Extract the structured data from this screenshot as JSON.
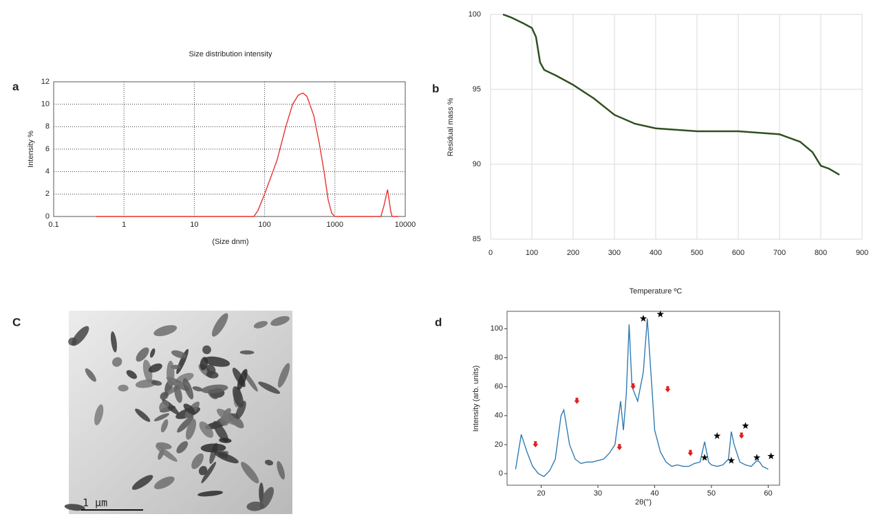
{
  "chart_data": [
    {
      "type": "line",
      "panel_label": "a",
      "title": "Size distribution intensity",
      "x_label": "(Size dnm)",
      "y_label": "Intensity %",
      "xscale": "log",
      "grid": "dotted",
      "color": "#e8312f",
      "x": [
        0.4,
        1,
        10,
        60,
        70,
        80,
        100,
        150,
        200,
        250,
        300,
        350,
        400,
        500,
        600,
        700,
        800,
        900,
        1000,
        4500,
        5000,
        5600,
        6200,
        6500,
        8000
      ],
      "values": [
        0,
        0,
        0,
        0,
        0,
        0.5,
        2,
        5,
        8,
        10,
        10.8,
        11,
        10.7,
        9,
        6.5,
        4,
        1.5,
        0.3,
        0,
        0,
        1,
        2.4,
        0.5,
        0,
        0
      ],
      "xlim": [
        0.1,
        10000
      ],
      "xticks": [
        0.1,
        1,
        10,
        100,
        1000,
        10000
      ],
      "ylim": [
        0,
        12
      ],
      "yticks": [
        0,
        2,
        4,
        6,
        8,
        10,
        12
      ]
    },
    {
      "type": "line",
      "panel_label": "b",
      "x_label": "Temperature ºC",
      "y_label": "Residual mass %",
      "grid": "solid",
      "color": "#2f4f1f",
      "x": [
        30,
        50,
        80,
        100,
        110,
        120,
        130,
        160,
        200,
        250,
        300,
        350,
        400,
        500,
        600,
        700,
        750,
        780,
        800,
        820,
        845
      ],
      "values": [
        100,
        99.8,
        99.4,
        99.1,
        98.5,
        96.8,
        96.3,
        95.9,
        95.3,
        94.4,
        93.3,
        92.7,
        92.4,
        92.2,
        92.2,
        92.0,
        91.5,
        90.8,
        89.9,
        89.7,
        89.3
      ],
      "xlim": [
        0,
        900
      ],
      "xticks": [
        0,
        100,
        200,
        300,
        400,
        500,
        600,
        700,
        800,
        900
      ],
      "ylim": [
        85,
        100
      ],
      "yticks": [
        85,
        90,
        95,
        100
      ]
    },
    {
      "type": "line",
      "panel_label": "d",
      "x_label": "2θ(°)",
      "y_label": "Intensity (arb. units)",
      "color": "#2e7bb4",
      "x": [
        15.5,
        16.5,
        17.5,
        18.5,
        19.5,
        20.5,
        21.5,
        22.5,
        23.5,
        24,
        25,
        26,
        27,
        28,
        29,
        30,
        31,
        32,
        33,
        34,
        34.5,
        35,
        35.5,
        36,
        37,
        38,
        38.7,
        39.5,
        40,
        41,
        42,
        43,
        44,
        45,
        46,
        47,
        48,
        48.8,
        49.5,
        50,
        51,
        52,
        53,
        53.5,
        54,
        55,
        56,
        57,
        58,
        58.5,
        59,
        60
      ],
      "values": [
        3,
        27,
        15,
        5,
        0,
        -2,
        2,
        10,
        40,
        44,
        20,
        10,
        7,
        8,
        8,
        9,
        10,
        14,
        20,
        50,
        30,
        55,
        103,
        60,
        50,
        70,
        107,
        60,
        30,
        15,
        8,
        5,
        6,
        5,
        5,
        7,
        8,
        22,
        8,
        6,
        5,
        6,
        10,
        29,
        20,
        8,
        6,
        5,
        9,
        8,
        5,
        3
      ],
      "xlim": [
        14,
        62
      ],
      "xticks": [
        20,
        30,
        40,
        50,
        60
      ],
      "ylim": [
        -8,
        112
      ],
      "yticks": [
        0,
        20,
        40,
        60,
        80,
        100
      ],
      "star_markers": {
        "color": "#000000",
        "x": [
          38,
          41,
          48.8,
          51,
          53.5,
          56,
          58,
          60.5
        ],
        "y": [
          107,
          110,
          11,
          26,
          9,
          33,
          11,
          12
        ]
      },
      "arrow_markers": {
        "color": "#e02020",
        "x": [
          19,
          26.3,
          33.8,
          36.2,
          42.3,
          46.3,
          55.3
        ],
        "y": [
          20,
          50,
          18,
          60,
          58,
          14,
          26
        ]
      }
    }
  ],
  "image_panel": {
    "label": "C",
    "scale_bar": "1 µm"
  }
}
